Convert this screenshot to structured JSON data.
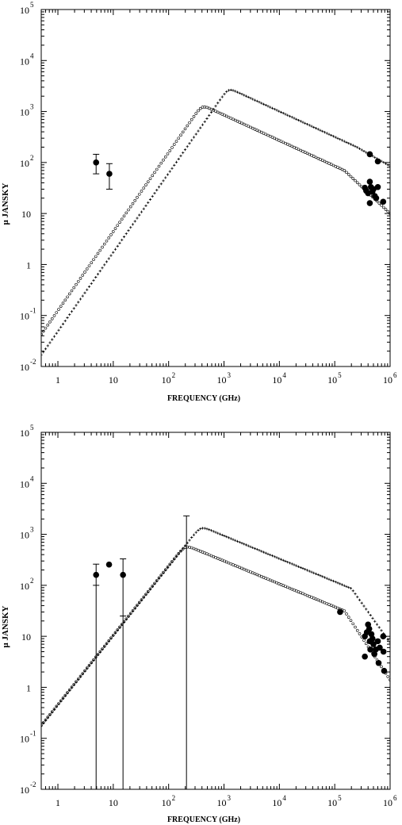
{
  "chart_data": [
    {
      "type": "scatter",
      "title": "",
      "xlabel": "FREQUENCY (GHz)",
      "ylabel": "μ JANSKY",
      "xscale": "log",
      "yscale": "log",
      "xlim": [
        0.5,
        1000000
      ],
      "ylim": [
        0.01,
        100000
      ],
      "grid": false,
      "x_ticks": [
        {
          "mant": "1",
          "exp": ""
        },
        {
          "mant": "10",
          "exp": ""
        },
        {
          "mant": "10",
          "exp": "2"
        },
        {
          "mant": "10",
          "exp": "3"
        },
        {
          "mant": "10",
          "exp": "4"
        },
        {
          "mant": "10",
          "exp": "5"
        },
        {
          "mant": "10",
          "exp": "6"
        }
      ],
      "y_ticks": [
        {
          "mant": "10",
          "exp": "-2"
        },
        {
          "mant": "10",
          "exp": "-1"
        },
        {
          "mant": "1",
          "exp": ""
        },
        {
          "mant": "10",
          "exp": ""
        },
        {
          "mant": "10",
          "exp": "2"
        },
        {
          "mant": "10",
          "exp": "3"
        },
        {
          "mant": "10",
          "exp": "4"
        },
        {
          "mant": "10",
          "exp": "5"
        }
      ],
      "models": [
        {
          "marker": "circle",
          "peak_x": 400,
          "peak_y": 1350,
          "low_slope": 1.55,
          "high_slope": -0.5,
          "cutoff_x": 150000,
          "end_y": 10
        },
        {
          "marker": "plus",
          "peak_x": 1200,
          "peak_y": 2900,
          "low_slope": 1.55,
          "high_slope": -0.5,
          "cutoff_x": 250000,
          "end_y": 85
        }
      ],
      "points": [
        {
          "x": 4.9,
          "y": 100,
          "ylo": 60,
          "yhi": 145
        },
        {
          "x": 8.5,
          "y": 60,
          "ylo": 30,
          "yhi": 95
        },
        {
          "x": 430000,
          "y": 145
        },
        {
          "x": 600000,
          "y": 105
        },
        {
          "x": 350000,
          "y": 32
        },
        {
          "x": 370000,
          "y": 28
        },
        {
          "x": 400000,
          "y": 25
        },
        {
          "x": 430000,
          "y": 42
        },
        {
          "x": 450000,
          "y": 33
        },
        {
          "x": 480000,
          "y": 27
        },
        {
          "x": 500000,
          "y": 30
        },
        {
          "x": 530000,
          "y": 22
        },
        {
          "x": 560000,
          "y": 20
        },
        {
          "x": 600000,
          "y": 33
        },
        {
          "x": 430000,
          "y": 16
        },
        {
          "x": 750000,
          "y": 17
        }
      ]
    },
    {
      "type": "scatter",
      "title": "",
      "xlabel": "FREQUENCY (GHz)",
      "ylabel": "μ JANSKY",
      "xscale": "log",
      "yscale": "log",
      "xlim": [
        0.5,
        1000000
      ],
      "ylim": [
        0.01,
        100000
      ],
      "grid": false,
      "x_ticks": [
        {
          "mant": "1",
          "exp": ""
        },
        {
          "mant": "10",
          "exp": ""
        },
        {
          "mant": "10",
          "exp": "2"
        },
        {
          "mant": "10",
          "exp": "3"
        },
        {
          "mant": "10",
          "exp": "4"
        },
        {
          "mant": "10",
          "exp": "5"
        },
        {
          "mant": "10",
          "exp": "6"
        }
      ],
      "y_ticks": [
        {
          "mant": "10",
          "exp": "-2"
        },
        {
          "mant": "10",
          "exp": "-1"
        },
        {
          "mant": "1",
          "exp": ""
        },
        {
          "mant": "10",
          "exp": ""
        },
        {
          "mant": "10",
          "exp": "2"
        },
        {
          "mant": "10",
          "exp": "3"
        },
        {
          "mant": "10",
          "exp": "4"
        },
        {
          "mant": "10",
          "exp": "5"
        }
      ],
      "models": [
        {
          "marker": "circle",
          "peak_x": 200,
          "peak_y": 620,
          "low_slope": 1.36,
          "high_slope": -0.45,
          "cutoff_x": 150000,
          "end_y": 1.4
        },
        {
          "marker": "plus",
          "peak_x": 380,
          "peak_y": 1450,
          "low_slope": 1.36,
          "high_slope": -0.45,
          "cutoff_x": 200000,
          "end_y": 7.5
        }
      ],
      "points": [
        {
          "x": 4.9,
          "y": 160,
          "ylo": 0.01,
          "yhi": 260,
          "cap": 100
        },
        {
          "x": 8.4,
          "y": 255
        },
        {
          "x": 15,
          "y": 160,
          "ylo": 0.01,
          "yhi": 330,
          "cap": 25
        },
        {
          "x": 210,
          "y": 0.01,
          "ylo": 0.01,
          "yhi": 2300
        },
        {
          "x": 125000,
          "y": 30
        },
        {
          "x": 350000,
          "y": 10
        },
        {
          "x": 350000,
          "y": 4
        },
        {
          "x": 380000,
          "y": 12
        },
        {
          "x": 400000,
          "y": 17
        },
        {
          "x": 420000,
          "y": 14
        },
        {
          "x": 430000,
          "y": 8
        },
        {
          "x": 440000,
          "y": 5.5
        },
        {
          "x": 460000,
          "y": 11
        },
        {
          "x": 480000,
          "y": 9
        },
        {
          "x": 500000,
          "y": 7
        },
        {
          "x": 520000,
          "y": 4.5
        },
        {
          "x": 550000,
          "y": 5.5
        },
        {
          "x": 600000,
          "y": 8
        },
        {
          "x": 620000,
          "y": 3
        },
        {
          "x": 650000,
          "y": 6
        },
        {
          "x": 750000,
          "y": 10
        },
        {
          "x": 760000,
          "y": 5
        },
        {
          "x": 780000,
          "y": 2.1
        }
      ]
    }
  ]
}
